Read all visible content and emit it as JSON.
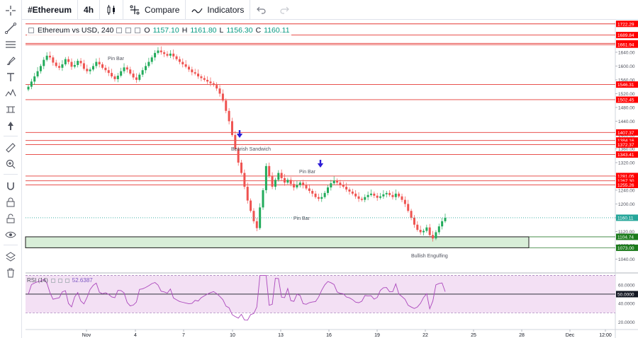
{
  "toolbar": {
    "symbol": "#Ethereum",
    "interval": "4h",
    "compare_label": "Compare",
    "indicators_label": "Indicators"
  },
  "legend": {
    "title": "Ethereum vs USD, 240",
    "open_label": "O",
    "open": "1157.10",
    "high_label": "H",
    "high": "1161.80",
    "low_label": "L",
    "low": "1156.30",
    "close_label": "C",
    "close": "1160.11"
  },
  "rsi": {
    "label": "RSI (14)",
    "value": "52.6387",
    "levels": [
      "60.0000",
      "50.0000",
      "40.0000",
      "20.0000"
    ]
  },
  "annotations": {
    "pin_bar_1": "Pin Bar",
    "bearish_sandwich": "Bearish Sandwich",
    "pin_bar_2": "Pin Bar",
    "pin_bar_3": "Pin Bar",
    "bullish_engulfing": "Bullish Engulfing"
  },
  "colors": {
    "up": "#26a69a",
    "up_fill": "#22ab5b",
    "down": "#ef5350",
    "level_line": "#e53935",
    "level_tag": "#ff0000",
    "zone_fill": "#d8eed8",
    "support_tag": "#1b7a1b",
    "rsi_line": "#ab47bc",
    "rsi_band": "#f3e0f4",
    "arrow": "#2d1cd6"
  },
  "chart_data": {
    "type": "candlestick",
    "title": "Ethereum vs USD, 240",
    "ylim": [
      1000,
      1730
    ],
    "x_tick_labels": [
      "Nov",
      "4",
      "7",
      "10",
      "13",
      "16",
      "19",
      "22",
      "25",
      "28",
      "Dec",
      "12:00"
    ],
    "y_tick_labels": [
      "1640.00",
      "1600.00",
      "1560.00",
      "1520.00",
      "1480.00",
      "1440.00",
      "1400.00",
      "1360.00",
      "1320.00",
      "1280.00",
      "1240.00",
      "1200.00",
      "1160.00",
      "1120.00",
      "1080.00",
      "1040.00"
    ],
    "resistance_levels": [
      "1722.29",
      "1689.84",
      "1665.84",
      "1661.94",
      "1546.31",
      "1502.45",
      "1407.37",
      "1384.16",
      "1372.37",
      "1343.41",
      "1281.05",
      "1267.30",
      "1255.26"
    ],
    "current_price": "1160.11",
    "support_levels": [
      "1104.74",
      "1073.00"
    ],
    "closes": [
      1540,
      1555,
      1570,
      1585,
      1600,
      1618,
      1630,
      1625,
      1610,
      1600,
      1595,
      1605,
      1620,
      1612,
      1598,
      1603,
      1615,
      1608,
      1592,
      1585,
      1590,
      1600,
      1612,
      1605,
      1595,
      1588,
      1580,
      1570,
      1562,
      1572,
      1585,
      1596,
      1590,
      1578,
      1567,
      1560,
      1575,
      1588,
      1600,
      1612,
      1625,
      1638,
      1645,
      1640,
      1635,
      1630,
      1636,
      1628,
      1620,
      1612,
      1605,
      1598,
      1590,
      1582,
      1578,
      1570,
      1565,
      1560,
      1555,
      1550,
      1545,
      1535,
      1520,
      1500,
      1470,
      1440,
      1400,
      1360,
      1320,
      1290,
      1250,
      1210,
      1180,
      1150,
      1130,
      1190,
      1240,
      1310,
      1280,
      1250,
      1270,
      1290,
      1275,
      1262,
      1270,
      1258,
      1248,
      1255,
      1262,
      1254,
      1245,
      1238,
      1230,
      1220,
      1215,
      1220,
      1232,
      1248,
      1260,
      1268,
      1262,
      1255,
      1250,
      1242,
      1236,
      1230,
      1222,
      1215,
      1212,
      1220,
      1226,
      1230,
      1224,
      1218,
      1222,
      1228,
      1232,
      1226,
      1220,
      1230,
      1222,
      1212,
      1200,
      1180,
      1160,
      1140,
      1125,
      1118,
      1122,
      1132,
      1110,
      1100,
      1118,
      1135,
      1150,
      1160
    ]
  }
}
